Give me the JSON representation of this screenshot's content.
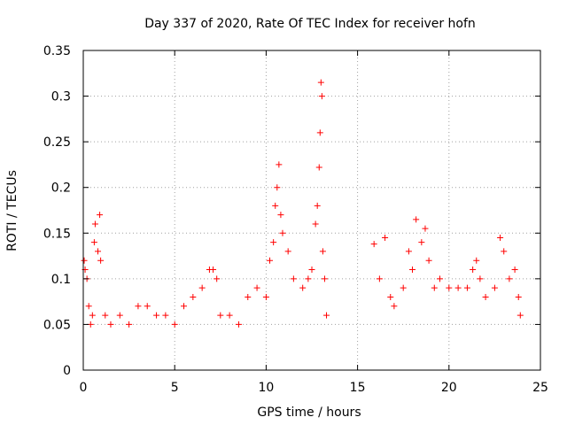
{
  "chart_data": {
    "type": "scatter",
    "title": "Day 337 of 2020, Rate Of TEC Index for receiver hofn",
    "xlabel": "GPS time / hours",
    "ylabel": "ROTI / TECUs",
    "xlim": [
      0,
      25
    ],
    "ylim": [
      0,
      0.35
    ],
    "xticks": [
      0,
      5,
      10,
      15,
      20,
      25
    ],
    "yticks": [
      0,
      0.05,
      0.1,
      0.15,
      0.2,
      0.25,
      0.3,
      0.35
    ],
    "xtick_labels": [
      "0",
      "5",
      "10",
      "15",
      "20",
      "25"
    ],
    "ytick_labels": [
      "0",
      "0.05",
      "0.1",
      "0.15",
      "0.2",
      "0.25",
      "0.3",
      "0.35"
    ],
    "grid": true,
    "marker": "+",
    "color": "#ff0000",
    "series": [
      {
        "name": "ROTI",
        "points": [
          [
            0.05,
            0.12
          ],
          [
            0.1,
            0.11
          ],
          [
            0.2,
            0.1
          ],
          [
            0.3,
            0.07
          ],
          [
            0.4,
            0.05
          ],
          [
            0.5,
            0.06
          ],
          [
            0.6,
            0.14
          ],
          [
            0.65,
            0.16
          ],
          [
            0.8,
            0.13
          ],
          [
            0.9,
            0.17
          ],
          [
            0.95,
            0.12
          ],
          [
            1.2,
            0.06
          ],
          [
            1.5,
            0.05
          ],
          [
            2.0,
            0.06
          ],
          [
            2.5,
            0.05
          ],
          [
            3.0,
            0.07
          ],
          [
            3.5,
            0.07
          ],
          [
            4.0,
            0.06
          ],
          [
            4.5,
            0.06
          ],
          [
            5.0,
            0.05
          ],
          [
            5.5,
            0.07
          ],
          [
            6.0,
            0.08
          ],
          [
            6.5,
            0.09
          ],
          [
            6.9,
            0.11
          ],
          [
            7.1,
            0.11
          ],
          [
            7.3,
            0.1
          ],
          [
            7.5,
            0.06
          ],
          [
            8.0,
            0.06
          ],
          [
            8.5,
            0.05
          ],
          [
            9.0,
            0.08
          ],
          [
            9.5,
            0.09
          ],
          [
            10.0,
            0.08
          ],
          [
            10.2,
            0.12
          ],
          [
            10.4,
            0.14
          ],
          [
            10.5,
            0.18
          ],
          [
            10.6,
            0.2
          ],
          [
            10.7,
            0.225
          ],
          [
            10.8,
            0.17
          ],
          [
            10.9,
            0.15
          ],
          [
            11.2,
            0.13
          ],
          [
            11.5,
            0.1
          ],
          [
            12.0,
            0.09
          ],
          [
            12.3,
            0.1
          ],
          [
            12.5,
            0.11
          ],
          [
            12.7,
            0.16
          ],
          [
            12.8,
            0.18
          ],
          [
            12.9,
            0.222
          ],
          [
            12.95,
            0.26
          ],
          [
            13.0,
            0.315
          ],
          [
            13.05,
            0.3
          ],
          [
            13.1,
            0.13
          ],
          [
            13.2,
            0.1
          ],
          [
            13.3,
            0.06
          ],
          [
            15.9,
            0.138
          ],
          [
            16.2,
            0.1
          ],
          [
            16.5,
            0.145
          ],
          [
            16.8,
            0.08
          ],
          [
            17.0,
            0.07
          ],
          [
            17.5,
            0.09
          ],
          [
            17.8,
            0.13
          ],
          [
            18.0,
            0.11
          ],
          [
            18.2,
            0.165
          ],
          [
            18.5,
            0.14
          ],
          [
            18.7,
            0.155
          ],
          [
            18.9,
            0.12
          ],
          [
            19.2,
            0.09
          ],
          [
            19.5,
            0.1
          ],
          [
            20.0,
            0.09
          ],
          [
            20.5,
            0.09
          ],
          [
            21.0,
            0.09
          ],
          [
            21.3,
            0.11
          ],
          [
            21.5,
            0.12
          ],
          [
            21.7,
            0.1
          ],
          [
            22.0,
            0.08
          ],
          [
            22.5,
            0.09
          ],
          [
            22.8,
            0.145
          ],
          [
            23.0,
            0.13
          ],
          [
            23.3,
            0.1
          ],
          [
            23.6,
            0.11
          ],
          [
            23.8,
            0.08
          ],
          [
            23.9,
            0.06
          ]
        ]
      }
    ]
  }
}
